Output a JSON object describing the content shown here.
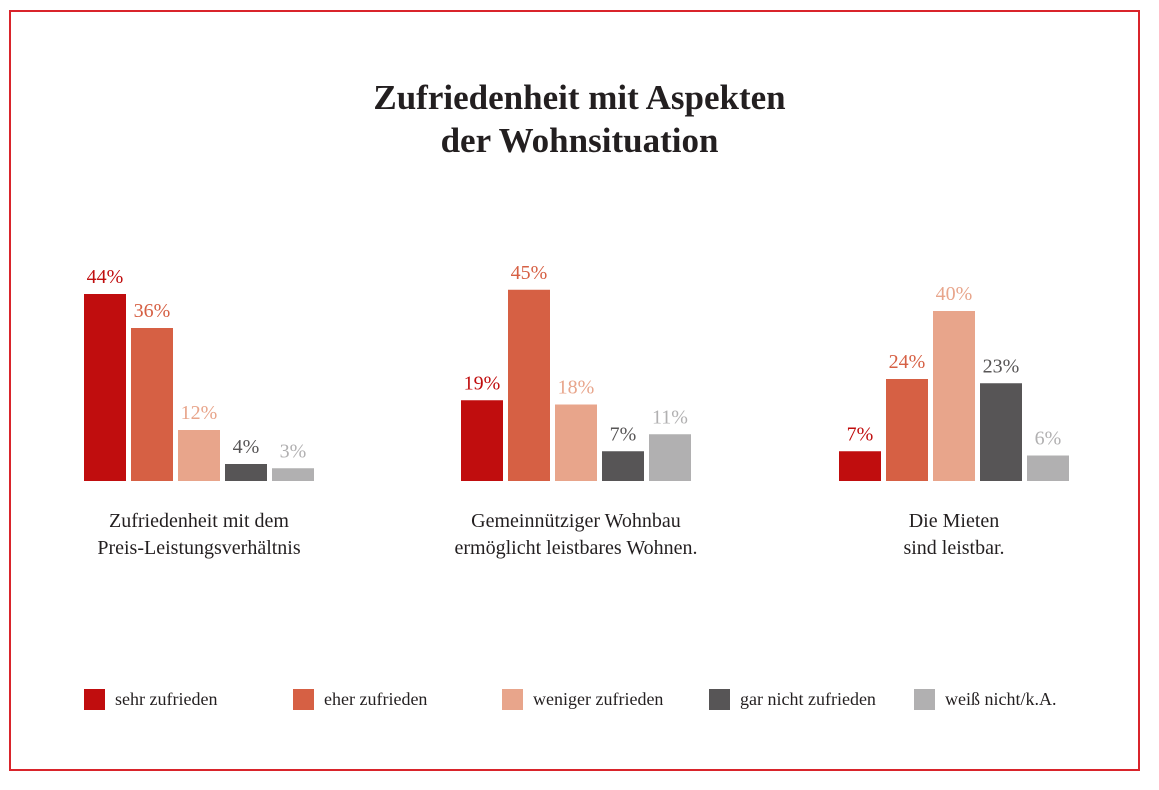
{
  "chart_data": {
    "type": "bar",
    "title": "Zufriedenheit mit Aspekten der Wohnsituation",
    "title_lines": [
      "Zufriedenheit mit Aspekten",
      "der Wohnsituation"
    ],
    "xlabel": "",
    "ylabel": "",
    "ylim": [
      0,
      45
    ],
    "grid": false,
    "legend_position": "bottom",
    "value_suffix": "%",
    "categories": [
      {
        "lines": [
          "Zufriedenheit mit dem",
          "Preis-Leistungsverhältnis"
        ]
      },
      {
        "lines": [
          "Gemeinnütziger Wohnbau",
          "ermöglicht leistbares Wohnen."
        ]
      },
      {
        "lines": [
          "Die Mieten",
          "sind leistbar."
        ]
      }
    ],
    "series": [
      {
        "name": "sehr zufrieden",
        "color": "#c00d0e",
        "label_color": "#c00d0e",
        "values": [
          44,
          19,
          7
        ]
      },
      {
        "name": "eher zufrieden",
        "color": "#d66044",
        "label_color": "#d66044",
        "values": [
          36,
          45,
          24
        ]
      },
      {
        "name": "weniger zufrieden",
        "color": "#e8a58b",
        "label_color": "#e8a58b",
        "values": [
          12,
          18,
          40
        ]
      },
      {
        "name": "gar nicht zufrieden",
        "color": "#575556",
        "label_color": "#575556",
        "values": [
          4,
          7,
          23
        ]
      },
      {
        "name": "weiß nicht/k.A.",
        "color": "#b1b0b1",
        "label_color": "#b1b0b1",
        "values": [
          3,
          11,
          6
        ]
      }
    ]
  },
  "frame_color": "#d9242b"
}
